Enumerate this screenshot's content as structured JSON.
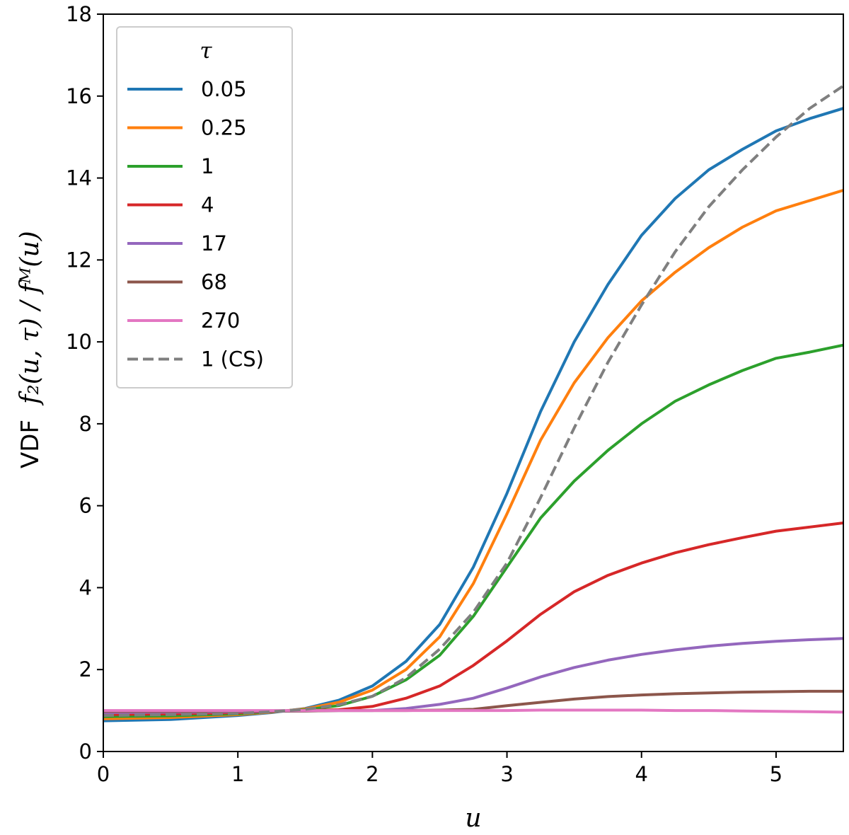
{
  "chart_data": {
    "type": "line",
    "title": "",
    "xlabel": "u",
    "ylabel_prefix": "VDF",
    "ylabel_math": "f₂(u, τ) / fᴹ(u)",
    "xlim": [
      0,
      5.5
    ],
    "ylim": [
      0,
      18
    ],
    "xticks": [
      0,
      1,
      2,
      3,
      4,
      5
    ],
    "yticks": [
      0,
      2,
      4,
      6,
      8,
      10,
      12,
      14,
      16,
      18
    ],
    "grid": false,
    "legend": {
      "title": "τ",
      "position": "top-left"
    },
    "x": [
      0,
      0.5,
      1,
      1.25,
      1.5,
      1.75,
      2,
      2.25,
      2.5,
      2.75,
      3,
      3.25,
      3.5,
      3.75,
      4,
      4.25,
      4.5,
      4.75,
      5,
      5.25,
      5.5
    ],
    "series": [
      {
        "name": "0.05",
        "color": "#1f77b4",
        "dash": "solid",
        "values": [
          0.75,
          0.78,
          0.88,
          0.95,
          1.05,
          1.25,
          1.6,
          2.2,
          3.1,
          4.5,
          6.3,
          8.3,
          10.0,
          11.4,
          12.6,
          13.5,
          14.2,
          14.7,
          15.15,
          15.45,
          15.7
        ]
      },
      {
        "name": "0.25",
        "color": "#ff7f0e",
        "dash": "solid",
        "values": [
          0.8,
          0.83,
          0.9,
          0.96,
          1.04,
          1.2,
          1.5,
          2.0,
          2.8,
          4.1,
          5.8,
          7.6,
          9.0,
          10.1,
          11.0,
          11.7,
          12.3,
          12.8,
          13.2,
          13.45,
          13.7
        ]
      },
      {
        "name": "1",
        "color": "#2ca02c",
        "dash": "solid",
        "values": [
          0.85,
          0.87,
          0.92,
          0.97,
          1.02,
          1.12,
          1.35,
          1.75,
          2.35,
          3.3,
          4.5,
          5.7,
          6.6,
          7.35,
          8.0,
          8.55,
          8.95,
          9.3,
          9.6,
          9.75,
          9.92
        ]
      },
      {
        "name": "4",
        "color": "#d62728",
        "dash": "solid",
        "values": [
          0.9,
          0.92,
          0.95,
          0.98,
          1.0,
          1.02,
          1.1,
          1.3,
          1.6,
          2.1,
          2.7,
          3.35,
          3.9,
          4.3,
          4.6,
          4.85,
          5.05,
          5.22,
          5.38,
          5.48,
          5.58
        ]
      },
      {
        "name": "17",
        "color": "#9467bd",
        "dash": "solid",
        "values": [
          0.95,
          0.96,
          0.97,
          0.98,
          0.99,
          1.0,
          1.0,
          1.05,
          1.15,
          1.3,
          1.55,
          1.82,
          2.05,
          2.23,
          2.37,
          2.48,
          2.57,
          2.64,
          2.69,
          2.73,
          2.76
        ]
      },
      {
        "name": "68",
        "color": "#8c564b",
        "dash": "solid",
        "values": [
          0.98,
          0.98,
          0.99,
          0.99,
          0.99,
          1.0,
          1.0,
          1.0,
          1.01,
          1.03,
          1.12,
          1.2,
          1.28,
          1.34,
          1.38,
          1.41,
          1.43,
          1.45,
          1.46,
          1.47,
          1.47
        ]
      },
      {
        "name": "270",
        "color": "#e377c2",
        "dash": "solid",
        "values": [
          1.0,
          1.0,
          1.0,
          1.0,
          1.0,
          1.0,
          1.0,
          1.0,
          1.0,
          1.0,
          1.0,
          1.01,
          1.01,
          1.01,
          1.01,
          1.0,
          1.0,
          0.99,
          0.98,
          0.97,
          0.96
        ]
      },
      {
        "name": "1 (CS)",
        "color": "#7f7f7f",
        "dash": "dashed",
        "values": [
          0.88,
          0.9,
          0.93,
          0.97,
          1.03,
          1.14,
          1.35,
          1.8,
          2.5,
          3.4,
          4.6,
          6.2,
          7.9,
          9.5,
          10.9,
          12.2,
          13.3,
          14.2,
          15.0,
          15.7,
          16.25
        ]
      }
    ]
  }
}
